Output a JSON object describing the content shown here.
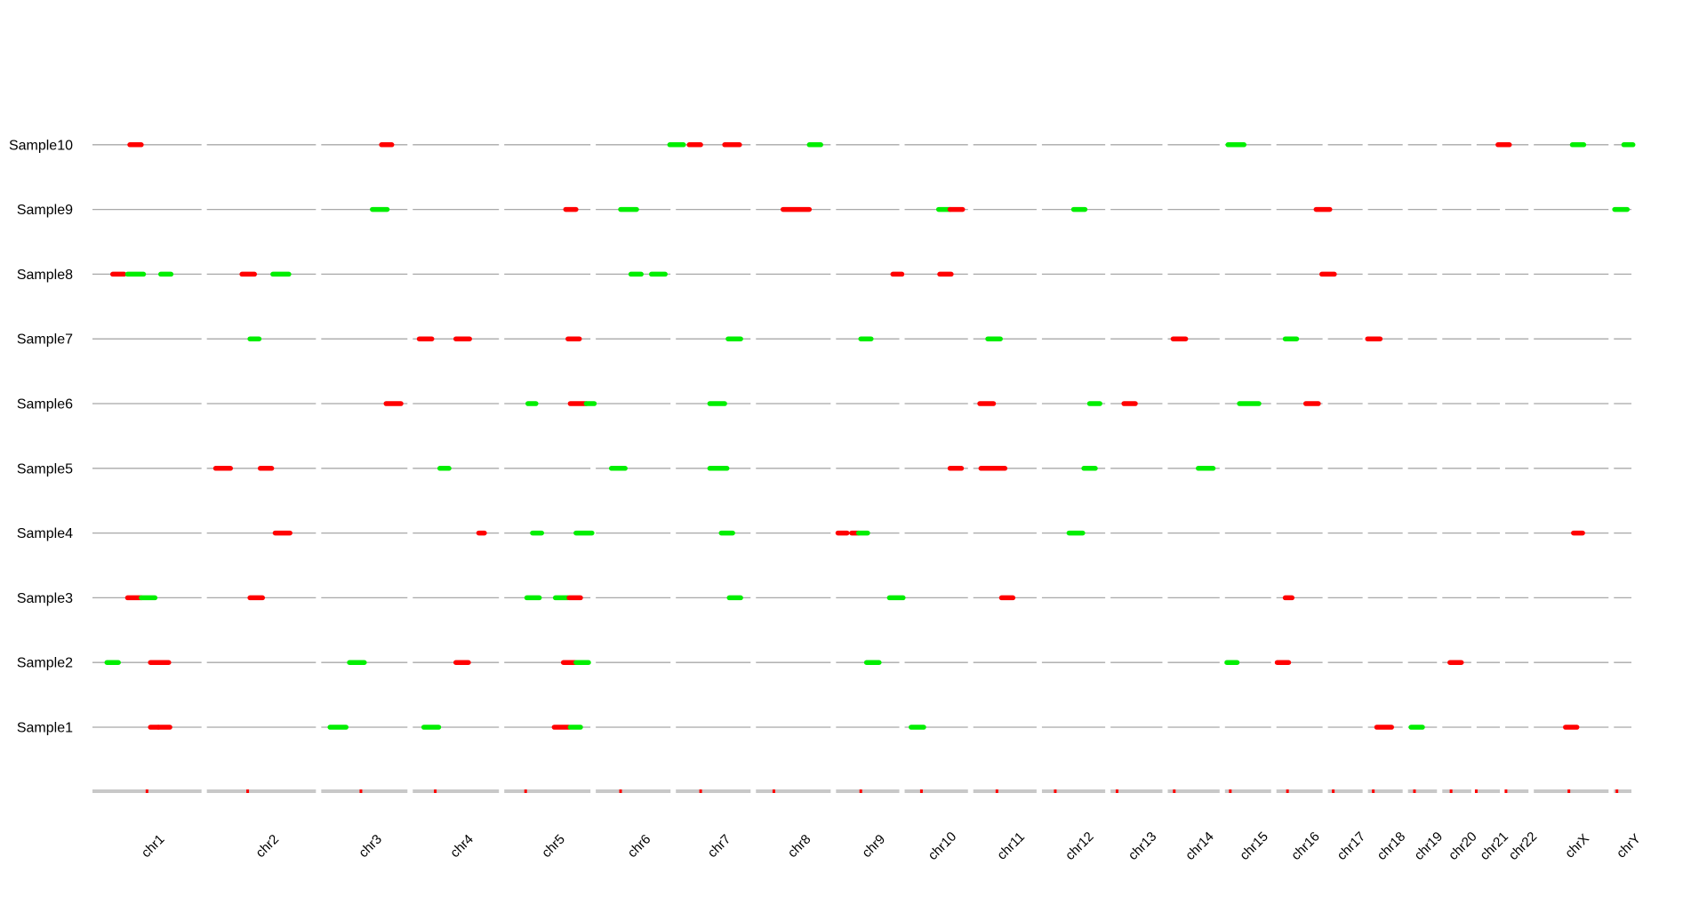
{
  "chart_data": {
    "type": "genome-track",
    "title": "",
    "xlabel": "",
    "ylabel": "",
    "colors": {
      "gain": "#ff0000",
      "loss": "#00ee00",
      "track": "#a8a8a8",
      "ideogram": "#c8c8c8",
      "centromere": "#ff0000"
    },
    "chromosomes": [
      {
        "name": "chr1",
        "start": 0.0,
        "end": 1.0
      },
      {
        "name": "chr2",
        "start": 1.0,
        "end": 2.0
      },
      {
        "name": "chr3",
        "start": 2.0,
        "end": 2.8
      },
      {
        "name": "chr4",
        "start": 2.8,
        "end": 3.6
      },
      {
        "name": "chr5",
        "start": 3.6,
        "end": 4.4
      },
      {
        "name": "chr6",
        "start": 4.4,
        "end": 5.1
      },
      {
        "name": "chr7",
        "start": 5.1,
        "end": 5.8
      },
      {
        "name": "chr8",
        "start": 5.8,
        "end": 6.5
      },
      {
        "name": "chr9",
        "start": 6.5,
        "end": 7.1
      },
      {
        "name": "chr10",
        "start": 7.1,
        "end": 7.7
      },
      {
        "name": "chr11",
        "start": 7.7,
        "end": 8.3
      },
      {
        "name": "chr12",
        "start": 8.3,
        "end": 8.9
      },
      {
        "name": "chr13",
        "start": 8.9,
        "end": 9.4
      },
      {
        "name": "chr14",
        "start": 9.4,
        "end": 9.9
      },
      {
        "name": "chr15",
        "start": 9.9,
        "end": 10.35
      },
      {
        "name": "chr16",
        "start": 10.35,
        "end": 10.8
      },
      {
        "name": "chr17",
        "start": 10.8,
        "end": 11.15
      },
      {
        "name": "chr18",
        "start": 11.15,
        "end": 11.5
      },
      {
        "name": "chr19",
        "start": 11.5,
        "end": 11.8
      },
      {
        "name": "chr20",
        "start": 11.8,
        "end": 12.1
      },
      {
        "name": "chr21",
        "start": 12.1,
        "end": 12.35
      },
      {
        "name": "chr22",
        "start": 12.35,
        "end": 12.6
      },
      {
        "name": "chrX",
        "start": 12.6,
        "end": 13.3
      },
      {
        "name": "chrY",
        "start": 13.3,
        "end": 13.5
      }
    ],
    "centromeres": [
      0.5,
      1.38,
      2.37,
      3.02,
      3.81,
      4.64,
      5.34,
      5.98,
      6.74,
      7.27,
      7.93,
      8.44,
      8.98,
      9.48,
      9.97,
      10.47,
      10.87,
      11.22,
      11.58,
      11.9,
      12.12,
      12.38,
      12.93,
      13.35
    ],
    "samples": [
      {
        "name": "Sample1",
        "segments": [
          [
            0.53,
            0.6,
            "gain"
          ],
          [
            0.6,
            0.7,
            "gain"
          ],
          [
            2.1,
            2.24,
            "loss"
          ],
          [
            2.92,
            3.05,
            "loss"
          ],
          [
            4.06,
            4.19,
            "gain"
          ],
          [
            4.2,
            4.29,
            "loss"
          ],
          [
            7.18,
            7.29,
            "loss"
          ],
          [
            11.25,
            11.38,
            "gain"
          ],
          [
            11.55,
            11.65,
            "loss"
          ],
          [
            12.9,
            13.0,
            "gain"
          ]
        ]
      },
      {
        "name": "Sample2",
        "segments": [
          [
            0.15,
            0.25,
            "loss"
          ],
          [
            0.53,
            0.69,
            "gain"
          ],
          [
            2.27,
            2.4,
            "loss"
          ],
          [
            3.2,
            3.31,
            "gain"
          ],
          [
            4.14,
            4.25,
            "gain"
          ],
          [
            4.25,
            4.36,
            "loss"
          ],
          [
            6.79,
            6.9,
            "loss"
          ],
          [
            9.94,
            10.03,
            "loss"
          ],
          [
            10.38,
            10.48,
            "gain"
          ],
          [
            11.89,
            11.99,
            "gain"
          ]
        ]
      },
      {
        "name": "Sample3",
        "segments": [
          [
            0.33,
            0.45,
            "gain"
          ],
          [
            0.45,
            0.57,
            "loss"
          ],
          [
            1.4,
            1.51,
            "gain"
          ],
          [
            3.82,
            3.93,
            "loss"
          ],
          [
            4.07,
            4.18,
            "loss"
          ],
          [
            4.19,
            4.29,
            "gain"
          ],
          [
            5.59,
            5.69,
            "loss"
          ],
          [
            6.99,
            7.11,
            "loss"
          ],
          [
            7.97,
            8.07,
            "gain"
          ],
          [
            10.45,
            10.51,
            "gain"
          ]
        ]
      },
      {
        "name": "Sample4",
        "segments": [
          [
            1.62,
            1.75,
            "gain"
          ],
          [
            3.4,
            3.45,
            "gain"
          ],
          [
            3.87,
            3.95,
            "loss"
          ],
          [
            4.25,
            4.39,
            "loss"
          ],
          [
            5.52,
            5.62,
            "loss"
          ],
          [
            6.54,
            6.62,
            "gain"
          ],
          [
            6.66,
            6.72,
            "gain"
          ],
          [
            6.72,
            6.8,
            "loss"
          ],
          [
            8.56,
            8.68,
            "loss"
          ],
          [
            12.97,
            13.05,
            "gain"
          ]
        ]
      },
      {
        "name": "Sample5",
        "segments": [
          [
            1.1,
            1.23,
            "gain"
          ],
          [
            1.49,
            1.59,
            "gain"
          ],
          [
            3.06,
            3.14,
            "loss"
          ],
          [
            4.56,
            4.68,
            "loss"
          ],
          [
            5.42,
            5.57,
            "loss"
          ],
          [
            7.52,
            7.62,
            "gain"
          ],
          [
            7.79,
            8.0,
            "gain"
          ],
          [
            8.69,
            8.79,
            "loss"
          ],
          [
            9.69,
            9.82,
            "loss"
          ]
        ]
      },
      {
        "name": "Sample6",
        "segments": [
          [
            2.59,
            2.72,
            "gain"
          ],
          [
            3.83,
            3.9,
            "loss"
          ],
          [
            4.2,
            4.34,
            "gain"
          ],
          [
            4.34,
            4.41,
            "loss"
          ],
          [
            5.42,
            5.55,
            "loss"
          ],
          [
            7.78,
            7.9,
            "gain"
          ],
          [
            8.74,
            8.83,
            "loss"
          ],
          [
            9.04,
            9.14,
            "gain"
          ],
          [
            10.05,
            10.22,
            "loss"
          ],
          [
            10.63,
            10.74,
            "gain"
          ]
        ]
      },
      {
        "name": "Sample7",
        "segments": [
          [
            1.4,
            1.48,
            "loss"
          ],
          [
            2.88,
            2.99,
            "gain"
          ],
          [
            3.2,
            3.32,
            "gain"
          ],
          [
            4.18,
            4.28,
            "gain"
          ],
          [
            5.58,
            5.69,
            "loss"
          ],
          [
            6.74,
            6.83,
            "loss"
          ],
          [
            7.85,
            7.96,
            "loss"
          ],
          [
            9.47,
            9.58,
            "gain"
          ],
          [
            10.45,
            10.55,
            "loss"
          ],
          [
            11.17,
            11.28,
            "gain"
          ]
        ]
      },
      {
        "name": "Sample8",
        "segments": [
          [
            0.2,
            0.3,
            "gain"
          ],
          [
            0.33,
            0.47,
            "loss"
          ],
          [
            0.62,
            0.71,
            "loss"
          ],
          [
            1.33,
            1.44,
            "gain"
          ],
          [
            1.6,
            1.74,
            "loss"
          ],
          [
            4.73,
            4.82,
            "loss"
          ],
          [
            4.91,
            5.03,
            "loss"
          ],
          [
            7.02,
            7.1,
            "gain"
          ],
          [
            7.43,
            7.53,
            "gain"
          ],
          [
            10.77,
            10.88,
            "gain"
          ]
        ]
      },
      {
        "name": "Sample9",
        "segments": [
          [
            2.47,
            2.6,
            "loss"
          ],
          [
            4.16,
            4.25,
            "gain"
          ],
          [
            4.64,
            4.78,
            "loss"
          ],
          [
            6.06,
            6.29,
            "gain"
          ],
          [
            7.42,
            7.52,
            "loss"
          ],
          [
            7.52,
            7.63,
            "gain"
          ],
          [
            8.6,
            8.7,
            "loss"
          ],
          [
            10.72,
            10.84,
            "gain"
          ],
          [
            13.33,
            13.44,
            "loss"
          ]
        ]
      },
      {
        "name": "Sample10",
        "segments": [
          [
            0.35,
            0.45,
            "gain"
          ],
          [
            2.55,
            2.64,
            "gain"
          ],
          [
            5.07,
            5.19,
            "loss"
          ],
          [
            5.24,
            5.34,
            "gain"
          ],
          [
            5.55,
            5.68,
            "gain"
          ],
          [
            6.29,
            6.39,
            "loss"
          ],
          [
            9.95,
            10.09,
            "loss"
          ],
          [
            12.31,
            12.41,
            "gain"
          ],
          [
            12.96,
            13.06,
            "loss"
          ],
          [
            13.41,
            13.49,
            "loss"
          ]
        ]
      }
    ]
  }
}
